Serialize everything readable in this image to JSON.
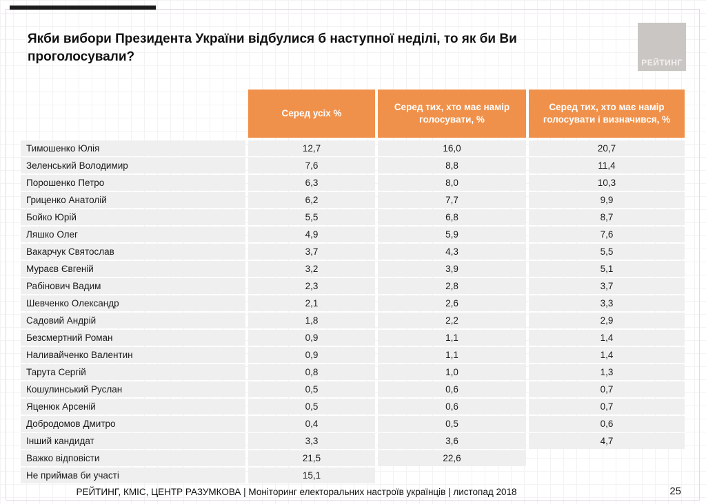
{
  "title": "Якби вибори Президента України відбулися б наступної неділі, то як би Ви проголосували?",
  "logo": {
    "text": "РЕЙТИНГ"
  },
  "footer": {
    "source": "РЕЙТИНГ, КМІС, ЦЕНТР РАЗУМКОВА |  Моніторинг електоральних настроїв українців | листопад 2018",
    "page": "25"
  },
  "colors": {
    "header_orange": "#f0914b",
    "row_gray": "#efefef",
    "logo_gray": "#c9c6c3"
  },
  "chart_data": {
    "type": "table",
    "title": "Якби вибори Президента України відбулися б наступної неділі, то як би Ви проголосували?",
    "columns": [
      "",
      "Серед усіх %",
      "Серед тих, хто має намір голосувати, %",
      "Серед тих, хто має намір голосувати і визначився, %"
    ],
    "rows": [
      {
        "name": "Тимошенко Юлія",
        "values": [
          "12,7",
          "16,0",
          "20,7"
        ]
      },
      {
        "name": "Зеленський Володимир",
        "values": [
          "7,6",
          "8,8",
          "11,4"
        ]
      },
      {
        "name": "Порошенко Петро",
        "values": [
          "6,3",
          "8,0",
          "10,3"
        ]
      },
      {
        "name": "Гриценко Анатолій",
        "values": [
          "6,2",
          "7,7",
          "9,9"
        ]
      },
      {
        "name": "Бойко Юрій",
        "values": [
          "5,5",
          "6,8",
          "8,7"
        ]
      },
      {
        "name": "Ляшко Олег",
        "values": [
          "4,9",
          "5,9",
          "7,6"
        ]
      },
      {
        "name": "Вакарчук Святослав",
        "values": [
          "3,7",
          "4,3",
          "5,5"
        ]
      },
      {
        "name": "Мураєв Євгеній",
        "values": [
          "3,2",
          "3,9",
          "5,1"
        ]
      },
      {
        "name": "Рабінович Вадим",
        "values": [
          "2,3",
          "2,8",
          "3,7"
        ]
      },
      {
        "name": "Шевченко Олександр",
        "values": [
          "2,1",
          "2,6",
          "3,3"
        ]
      },
      {
        "name": "Садовий Андрій",
        "values": [
          "1,8",
          "2,2",
          "2,9"
        ]
      },
      {
        "name": "Безсмертний Роман",
        "values": [
          "0,9",
          "1,1",
          "1,4"
        ]
      },
      {
        "name": "Наливайченко Валентин",
        "values": [
          "0,9",
          "1,1",
          "1,4"
        ]
      },
      {
        "name": "Тарута Сергій",
        "values": [
          "0,8",
          "1,0",
          "1,3"
        ]
      },
      {
        "name": "Кошулинський Руслан",
        "values": [
          "0,5",
          "0,6",
          "0,7"
        ]
      },
      {
        "name": "Яценюк Арсеній",
        "values": [
          "0,5",
          "0,6",
          "0,7"
        ]
      },
      {
        "name": "Добродомов Дмитро",
        "values": [
          "0,4",
          "0,5",
          "0,6"
        ]
      },
      {
        "name": "Інший кандидат",
        "values": [
          "3,3",
          "3,6",
          "4,7"
        ]
      },
      {
        "name": "Важко відповісти",
        "values": [
          "21,5",
          "22,6",
          null
        ]
      },
      {
        "name": "Не приймав би участі",
        "values": [
          "15,1",
          null,
          null
        ]
      }
    ]
  }
}
